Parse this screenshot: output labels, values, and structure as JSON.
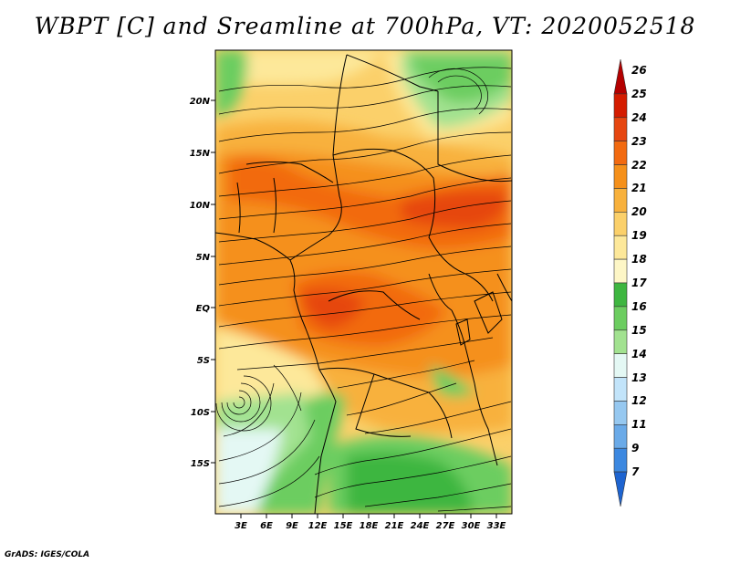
{
  "title": "WBPT [C] and Sreamline at 700hPa, VT: 2020052518",
  "lat_labels": [
    "20N",
    "15N",
    "10N",
    "5N",
    "EQ",
    "5S",
    "10S",
    "15S"
  ],
  "lon_labels": [
    "3E",
    "6E",
    "9E",
    "12E",
    "15E",
    "18E",
    "21E",
    "24E",
    "27E",
    "30E",
    "33E"
  ],
  "colorbar": {
    "labels": [
      "26",
      "25",
      "24",
      "23",
      "22",
      "21",
      "20",
      "19",
      "18",
      "17",
      "16",
      "15",
      "14",
      "13",
      "12",
      "11",
      "9",
      "7"
    ],
    "colors": [
      "#b40000",
      "#d41c00",
      "#e64610",
      "#f26a10",
      "#f5901a",
      "#f8b13c",
      "#fbd06a",
      "#fde89a",
      "#fdf6c6",
      "#3eb640",
      "#6ccd60",
      "#a2e290",
      "#e4f8f4",
      "#c2e4fa",
      "#96c8f0",
      "#6aaae8",
      "#3c88e0",
      "#1e64d0"
    ]
  },
  "footer": "GrADS: IGES/COLA"
}
